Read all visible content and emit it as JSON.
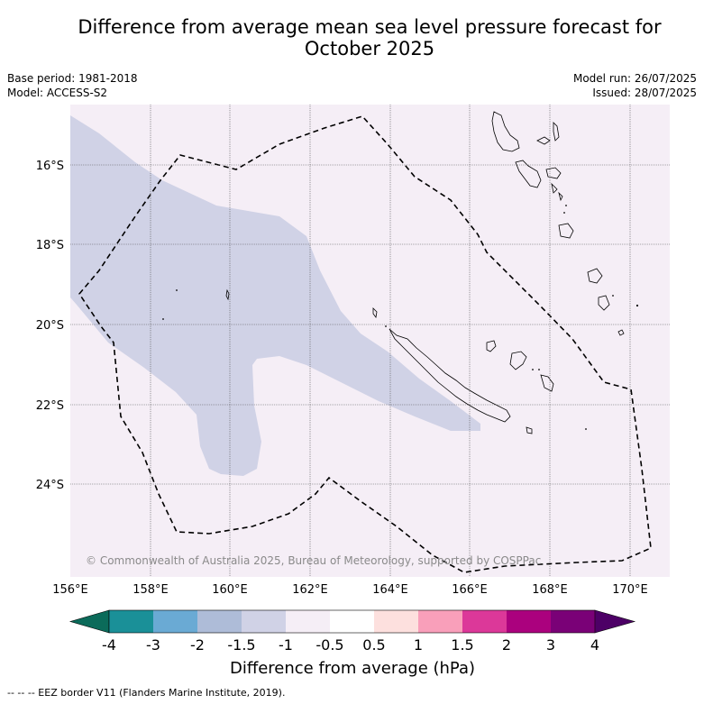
{
  "title_line1": "Difference from average mean sea level pressure forecast for",
  "title_line2": "October 2025",
  "meta_left": {
    "base_period": "Base period: 1981-2018",
    "model": "Model: ACCESS-S2"
  },
  "meta_right": {
    "model_run": "Model run: 26/07/2025",
    "issued": "Issued: 28/07/2025"
  },
  "map": {
    "lon_ticks": [
      "156°E",
      "158°E",
      "160°E",
      "162°E",
      "164°E",
      "166°E",
      "168°E",
      "170°E"
    ],
    "lat_ticks": [
      "16°S",
      "18°S",
      "20°S",
      "22°S",
      "24°S"
    ],
    "background_color": "#f5eef6",
    "anomaly_fill_color": "#d0d2e6",
    "copyright": "© Commonwealth of Australia 2025, Bureau of Meteorology, supported by COSPPac"
  },
  "colorbar": {
    "tick_labels": [
      "-4",
      "-3",
      "-2",
      "-1.5",
      "-1",
      "-0.5",
      "0.5",
      "1",
      "1.5",
      "2",
      "3",
      "4"
    ],
    "colors": [
      "#1a9098",
      "#6aaad4",
      "#aebcd8",
      "#d0d2e6",
      "#f5eef6",
      "#ffffff",
      "#fde0de",
      "#f99fba",
      "#dc3899",
      "#ab017e",
      "#7a0177"
    ],
    "under_color": "#0b6b5a",
    "over_color": "#4d0066",
    "label": "Difference from average (hPa)"
  },
  "footer": "--  --  -- EEZ border V11 (Flanders Marine Institute, 2019)."
}
